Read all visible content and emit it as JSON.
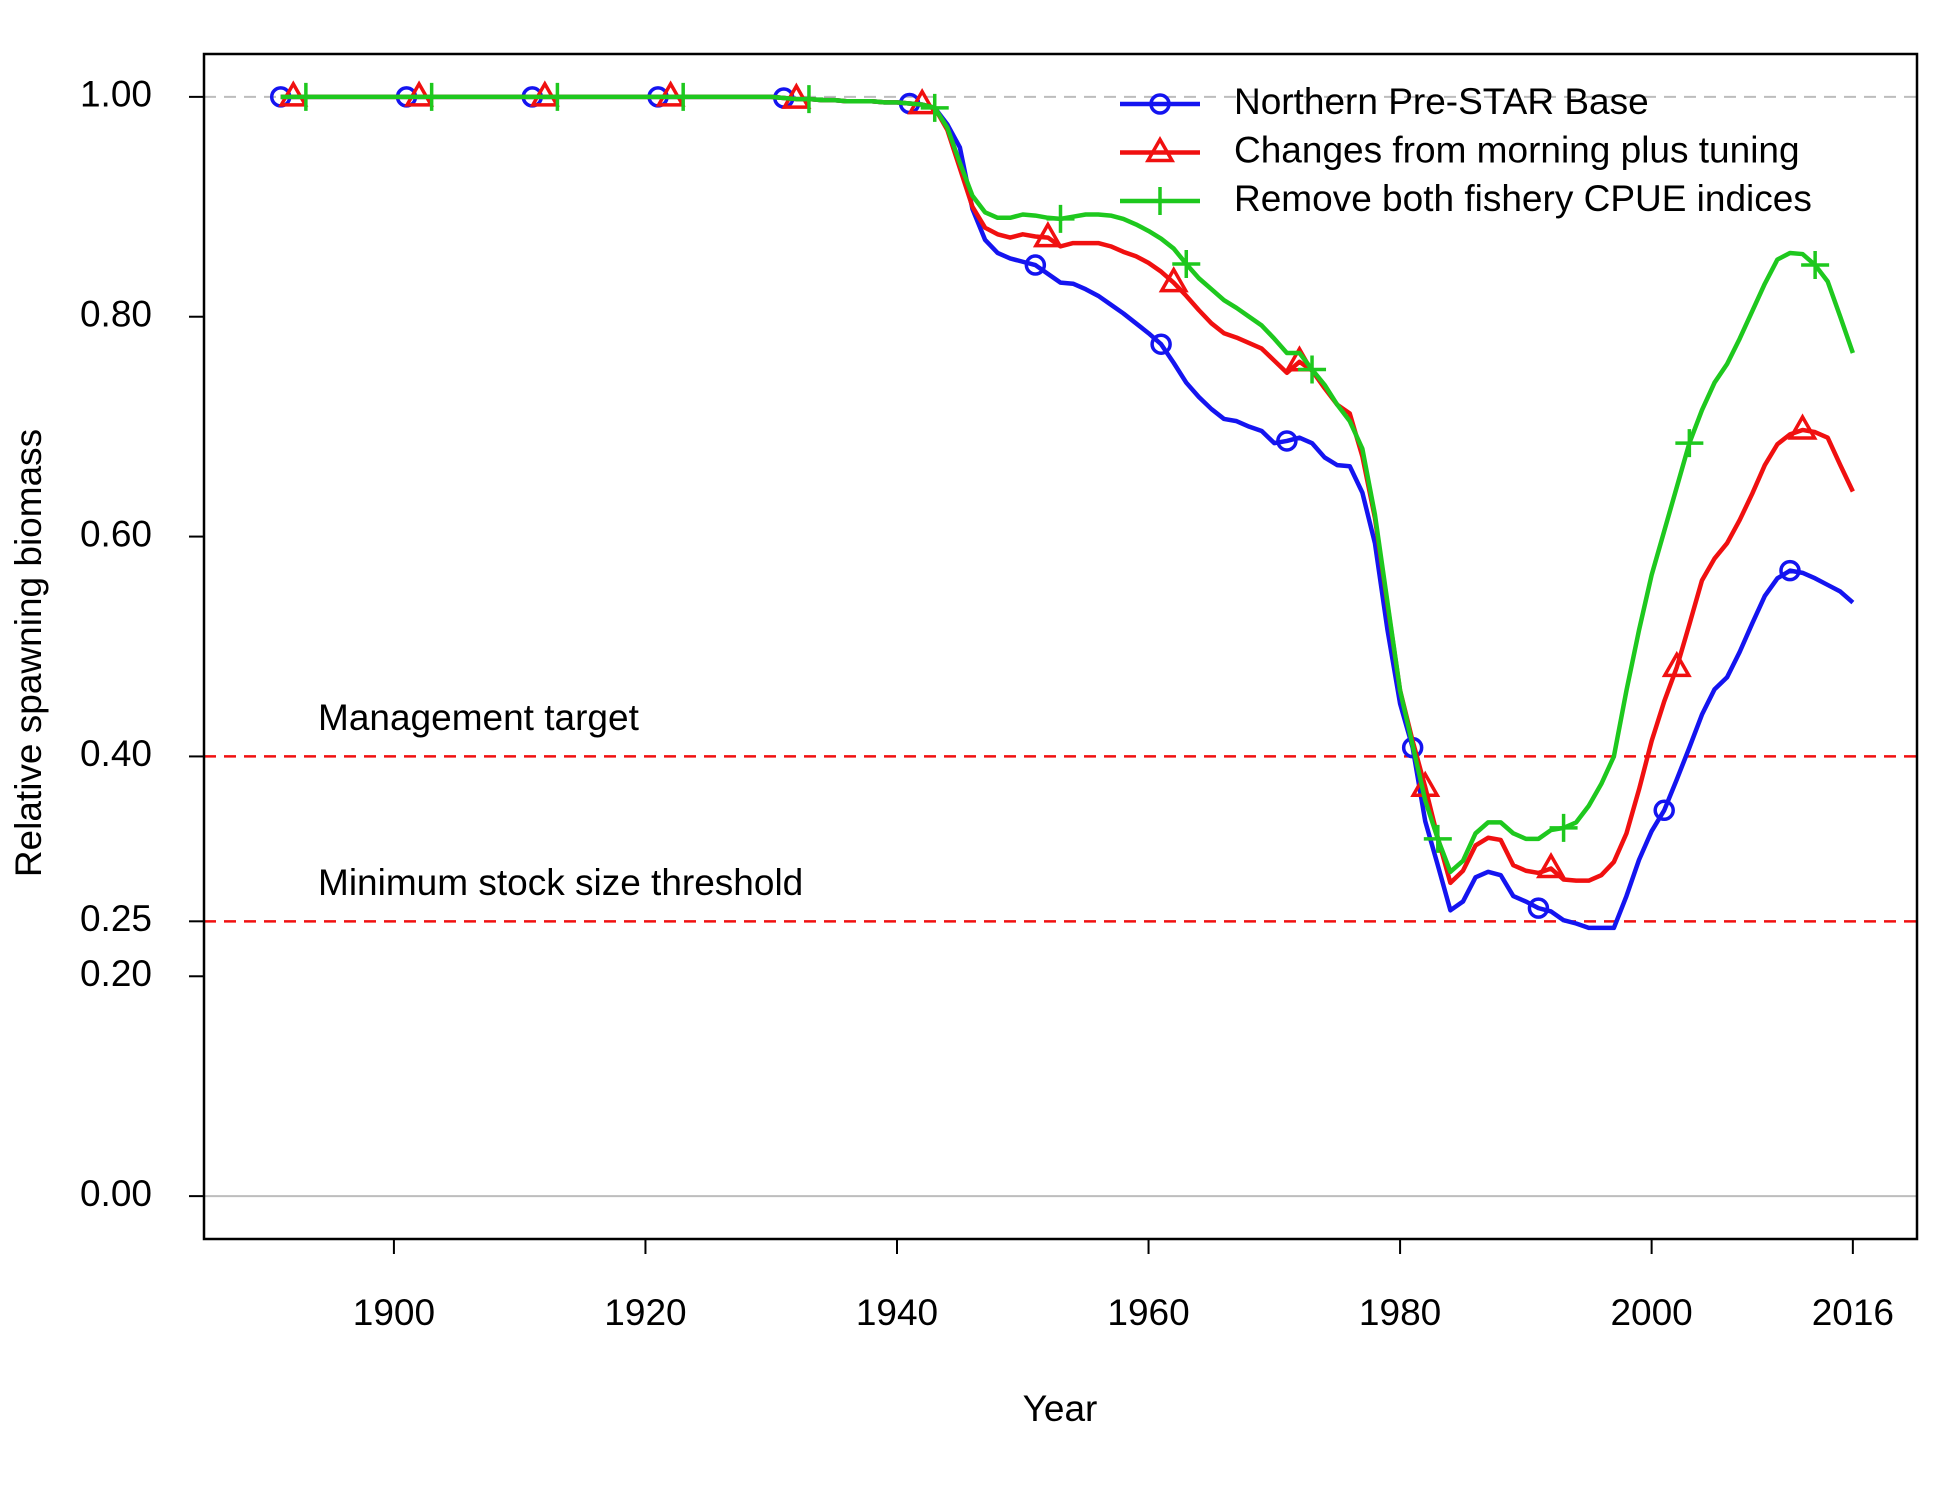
{
  "chart_data": {
    "type": "line",
    "x_label": "Year",
    "y_label": "Relative spawning biomass",
    "xlim": [
      1884.9,
      2021.1
    ],
    "ylim": [
      -0.039,
      1.039
    ],
    "xticks": [
      1900,
      1920,
      1940,
      1960,
      1980,
      2000,
      2016
    ],
    "yticks": [
      {
        "value": 0,
        "label": "0.00"
      },
      {
        "value": 0.2,
        "label": "0.20"
      },
      {
        "value": 0.25,
        "label": "0.25"
      },
      {
        "value": 0.4,
        "label": "0.40"
      },
      {
        "value": 0.6,
        "label": "0.60"
      },
      {
        "value": 0.8,
        "label": "0.80"
      },
      {
        "value": 1,
        "label": "1.00"
      }
    ],
    "legend": "top-right",
    "reference_lines": [
      {
        "value": 1,
        "color": "#bdbdbd",
        "dashed": true
      },
      {
        "value": 0,
        "color": "#bdbdbd",
        "dashed": false
      },
      {
        "value": 0.4,
        "color": "#f01010",
        "dashed": true,
        "label": "Management target"
      },
      {
        "value": 0.25,
        "color": "#f01010",
        "dashed": true,
        "label": "Minimum stock size threshold"
      }
    ],
    "x": [
      1891,
      1892,
      1893,
      1894,
      1895,
      1896,
      1897,
      1898,
      1899,
      1900,
      1901,
      1902,
      1903,
      1904,
      1905,
      1906,
      1907,
      1908,
      1909,
      1910,
      1911,
      1912,
      1913,
      1914,
      1915,
      1916,
      1917,
      1918,
      1919,
      1920,
      1921,
      1922,
      1923,
      1924,
      1925,
      1926,
      1927,
      1928,
      1929,
      1930,
      1931,
      1932,
      1933,
      1934,
      1935,
      1936,
      1937,
      1938,
      1939,
      1940,
      1941,
      1942,
      1943,
      1944,
      1945,
      1946,
      1947,
      1948,
      1949,
      1950,
      1951,
      1952,
      1953,
      1954,
      1955,
      1956,
      1957,
      1958,
      1959,
      1960,
      1961,
      1962,
      1963,
      1964,
      1965,
      1966,
      1967,
      1968,
      1969,
      1970,
      1971,
      1972,
      1973,
      1974,
      1975,
      1976,
      1977,
      1978,
      1979,
      1980,
      1981,
      1982,
      1983,
      1984,
      1985,
      1986,
      1987,
      1988,
      1989,
      1990,
      1991,
      1992,
      1993,
      1994,
      1995,
      1996,
      1997,
      1998,
      1999,
      2000,
      2001,
      2002,
      2003,
      2004,
      2005,
      2006,
      2007,
      2008,
      2009,
      2010,
      2011,
      2012,
      2013,
      2014,
      2015,
      2016
    ],
    "series": [
      {
        "name": "Northern Pre-STAR Base",
        "color": "#1414f0",
        "marker": "circle",
        "values": [
          1,
          1,
          1,
          1,
          1,
          1,
          1,
          1,
          1,
          1,
          1,
          1,
          1,
          1,
          1,
          1,
          1,
          1,
          1,
          1,
          1,
          1,
          1,
          1,
          1,
          1,
          1,
          1,
          1,
          1,
          1,
          1,
          1,
          1,
          1,
          1,
          1,
          1,
          1,
          1,
          0.999,
          0.998,
          0.998,
          0.997,
          0.997,
          0.996,
          0.996,
          0.996,
          0.995,
          0.995,
          0.994,
          0.993,
          0.99,
          0.975,
          0.954,
          0.898,
          0.87,
          0.858,
          0.853,
          0.85,
          0.847,
          0.839,
          0.831,
          0.83,
          0.825,
          0.819,
          0.811,
          0.803,
          0.794,
          0.785,
          0.775,
          0.758,
          0.74,
          0.727,
          0.716,
          0.707,
          0.705,
          0.7,
          0.696,
          0.685,
          0.687,
          0.69,
          0.685,
          0.672,
          0.665,
          0.664,
          0.64,
          0.594,
          0.515,
          0.448,
          0.408,
          0.341,
          0.301,
          0.26,
          0.268,
          0.29,
          0.295,
          0.292,
          0.273,
          0.268,
          0.262,
          0.259,
          0.251,
          0.248,
          0.244,
          0.244,
          0.244,
          0.273,
          0.306,
          0.332,
          0.351,
          0.379,
          0.408,
          0.438,
          0.461,
          0.472,
          0.495,
          0.521,
          0.546,
          0.562,
          0.569,
          0.567,
          0.562,
          0.556,
          0.55,
          0.54
        ]
      },
      {
        "name": "Changes from morning plus tuning",
        "color": "#f01010",
        "marker": "triangle",
        "values": [
          1,
          1,
          1,
          1,
          1,
          1,
          1,
          1,
          1,
          1,
          1,
          1,
          1,
          1,
          1,
          1,
          1,
          1,
          1,
          1,
          1,
          1,
          1,
          1,
          1,
          1,
          1,
          1,
          1,
          1,
          1,
          1,
          1,
          1,
          1,
          1,
          1,
          1,
          1,
          1,
          0.999,
          0.998,
          0.998,
          0.997,
          0.997,
          0.996,
          0.996,
          0.996,
          0.995,
          0.995,
          0.994,
          0.993,
          0.99,
          0.97,
          0.935,
          0.9,
          0.881,
          0.875,
          0.872,
          0.875,
          0.873,
          0.872,
          0.864,
          0.867,
          0.867,
          0.867,
          0.864,
          0.859,
          0.855,
          0.849,
          0.841,
          0.831,
          0.819,
          0.806,
          0.794,
          0.785,
          0.781,
          0.776,
          0.771,
          0.76,
          0.749,
          0.759,
          0.751,
          0.735,
          0.72,
          0.712,
          0.673,
          0.617,
          0.538,
          0.46,
          0.414,
          0.372,
          0.326,
          0.285,
          0.296,
          0.319,
          0.326,
          0.324,
          0.301,
          0.296,
          0.294,
          0.298,
          0.288,
          0.287,
          0.287,
          0.292,
          0.304,
          0.33,
          0.37,
          0.414,
          0.45,
          0.481,
          0.52,
          0.56,
          0.58,
          0.594,
          0.615,
          0.639,
          0.665,
          0.684,
          0.693,
          0.697,
          0.695,
          0.69,
          0.665,
          0.641
        ]
      },
      {
        "name": "Remove both fishery CPUE indices",
        "color": "#1ec81e",
        "marker": "plus",
        "values": [
          1,
          1,
          1,
          1,
          1,
          1,
          1,
          1,
          1,
          1,
          1,
          1,
          1,
          1,
          1,
          1,
          1,
          1,
          1,
          1,
          1,
          1,
          1,
          1,
          1,
          1,
          1,
          1,
          1,
          1,
          1,
          1,
          1,
          1,
          1,
          1,
          1,
          1,
          1,
          1,
          0.999,
          0.998,
          0.998,
          0.997,
          0.997,
          0.996,
          0.996,
          0.996,
          0.995,
          0.995,
          0.994,
          0.993,
          0.99,
          0.972,
          0.94,
          0.91,
          0.895,
          0.89,
          0.89,
          0.893,
          0.892,
          0.89,
          0.889,
          0.891,
          0.893,
          0.893,
          0.892,
          0.889,
          0.884,
          0.878,
          0.871,
          0.862,
          0.848,
          0.835,
          0.825,
          0.815,
          0.808,
          0.8,
          0.792,
          0.78,
          0.767,
          0.767,
          0.752,
          0.738,
          0.72,
          0.705,
          0.68,
          0.62,
          0.54,
          0.46,
          0.41,
          0.36,
          0.325,
          0.295,
          0.305,
          0.33,
          0.34,
          0.34,
          0.33,
          0.325,
          0.325,
          0.333,
          0.335,
          0.34,
          0.355,
          0.375,
          0.4,
          0.46,
          0.515,
          0.565,
          0.605,
          0.645,
          0.685,
          0.715,
          0.74,
          0.757,
          0.78,
          0.805,
          0.83,
          0.852,
          0.858,
          0.857,
          0.847,
          0.832,
          0.8,
          0.767
        ]
      }
    ]
  }
}
